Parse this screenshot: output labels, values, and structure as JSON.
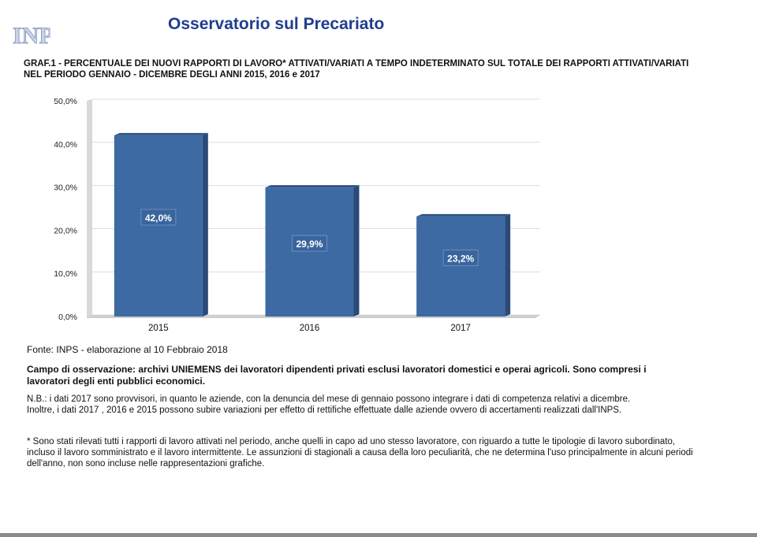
{
  "logo_text": "INPS",
  "title": "Osservatorio sul Precariato",
  "subtitle_line1": "GRAF.1 - PERCENTUALE DEI NUOVI RAPPORTI DI LAVORO* ATTIVATI/VARIATI A TEMPO INDETERMINATO SUL TOTALE DEI RAPPORTI ATTIVATI/VARIATI",
  "subtitle_line2": "NEL PERIODO GENNAIO - DICEMBRE  DEGLI ANNI 2015, 2016 e 2017",
  "chart_data": {
    "type": "bar",
    "categories": [
      "2015",
      "2016",
      "2017"
    ],
    "values": [
      42.0,
      29.9,
      23.2
    ],
    "data_labels": [
      "42,0%",
      "29,9%",
      "23,2%"
    ],
    "y_ticks": [
      "0,0%",
      "10,0%",
      "20,0%",
      "30,0%",
      "40,0%",
      "50,0%"
    ],
    "ylim": [
      0,
      50
    ],
    "grid": true,
    "colors": {
      "bar": "#3e6aa3",
      "bar_side": "#2a4a78",
      "bar_top": "#2f5485",
      "label_bg": "#3a659c",
      "label_border": "#6d8fbd",
      "grid": "#dcdcdc"
    }
  },
  "source": "Fonte: INPS - elaborazione al 10 Febbraio 2018",
  "campo": "Campo di osservazione: archivi UNIEMENS dei lavoratori dipendenti privati esclusi lavoratori domestici e operai agricoli. Sono compresi i lavoratori degli enti pubblici economici.",
  "nb_line1": "N.B.: i dati 2017 sono provvisori, in quanto le aziende, con la denuncia del mese di gennaio possono integrare i dati di competenza relativi a dicembre.",
  "nb_line2": "Inoltre, i dati 2017 , 2016 e 2015 possono subire variazioni per effetto di rettifiche effettuate dalle aziende ovvero di accertamenti realizzati dall'INPS.",
  "footnote": "* Sono stati rilevati tutti i rapporti di lavoro attivati nel periodo, anche quelli in capo ad uno stesso lavoratore, con riguardo a tutte le tipologie di lavoro subordinato, incluso il lavoro somministrato e il lavoro intermittente. Le assunzioni di stagionali a causa della loro peculiarità, che ne determina l'uso principalmente in alcuni periodi dell'anno, non sono incluse nelle rappresentazioni grafiche."
}
